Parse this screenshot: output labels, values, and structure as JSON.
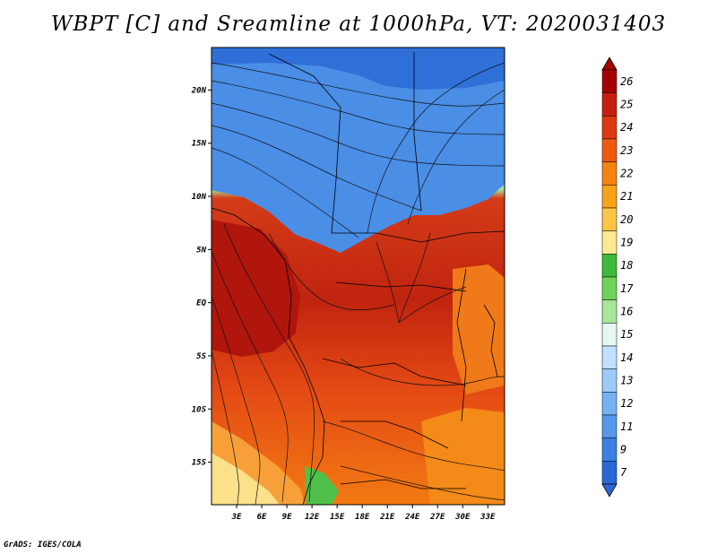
{
  "title": "WBPT [C] and Sreamline at 1000hPa, VT: 2020031403",
  "credit": "GrADS: IGES/COLA",
  "latitude_labels": [
    "20N",
    "15N",
    "10N",
    "5N",
    "EQ",
    "5S",
    "10S",
    "15S"
  ],
  "latitude_values": [
    20,
    15,
    10,
    5,
    0,
    -5,
    -10,
    -15
  ],
  "longitude_labels": [
    "3E",
    "6E",
    "9E",
    "12E",
    "15E",
    "18E",
    "21E",
    "24E",
    "27E",
    "30E",
    "33E"
  ],
  "longitude_values": [
    3,
    6,
    9,
    12,
    15,
    18,
    21,
    24,
    27,
    30,
    33
  ],
  "map_extent": {
    "lon_min": 0,
    "lon_max": 35,
    "lat_min": -19,
    "lat_max": 24
  },
  "colorbar": {
    "labels": [
      "26",
      "25",
      "24",
      "23",
      "22",
      "21",
      "20",
      "19",
      "18",
      "17",
      "16",
      "15",
      "14",
      "13",
      "12",
      "11",
      "9",
      "7"
    ],
    "colors": [
      "#a50000",
      "#c81e0f",
      "#de3a12",
      "#ee5a12",
      "#f7820f",
      "#f9a31a",
      "#fbc646",
      "#fde993",
      "#3fb93a",
      "#6fd35a",
      "#a8e69a",
      "#e4f7f2",
      "#bfe0ff",
      "#9ccbfa",
      "#74b2f3",
      "#5699ec",
      "#3c80e2",
      "#2a68d6"
    ]
  }
}
